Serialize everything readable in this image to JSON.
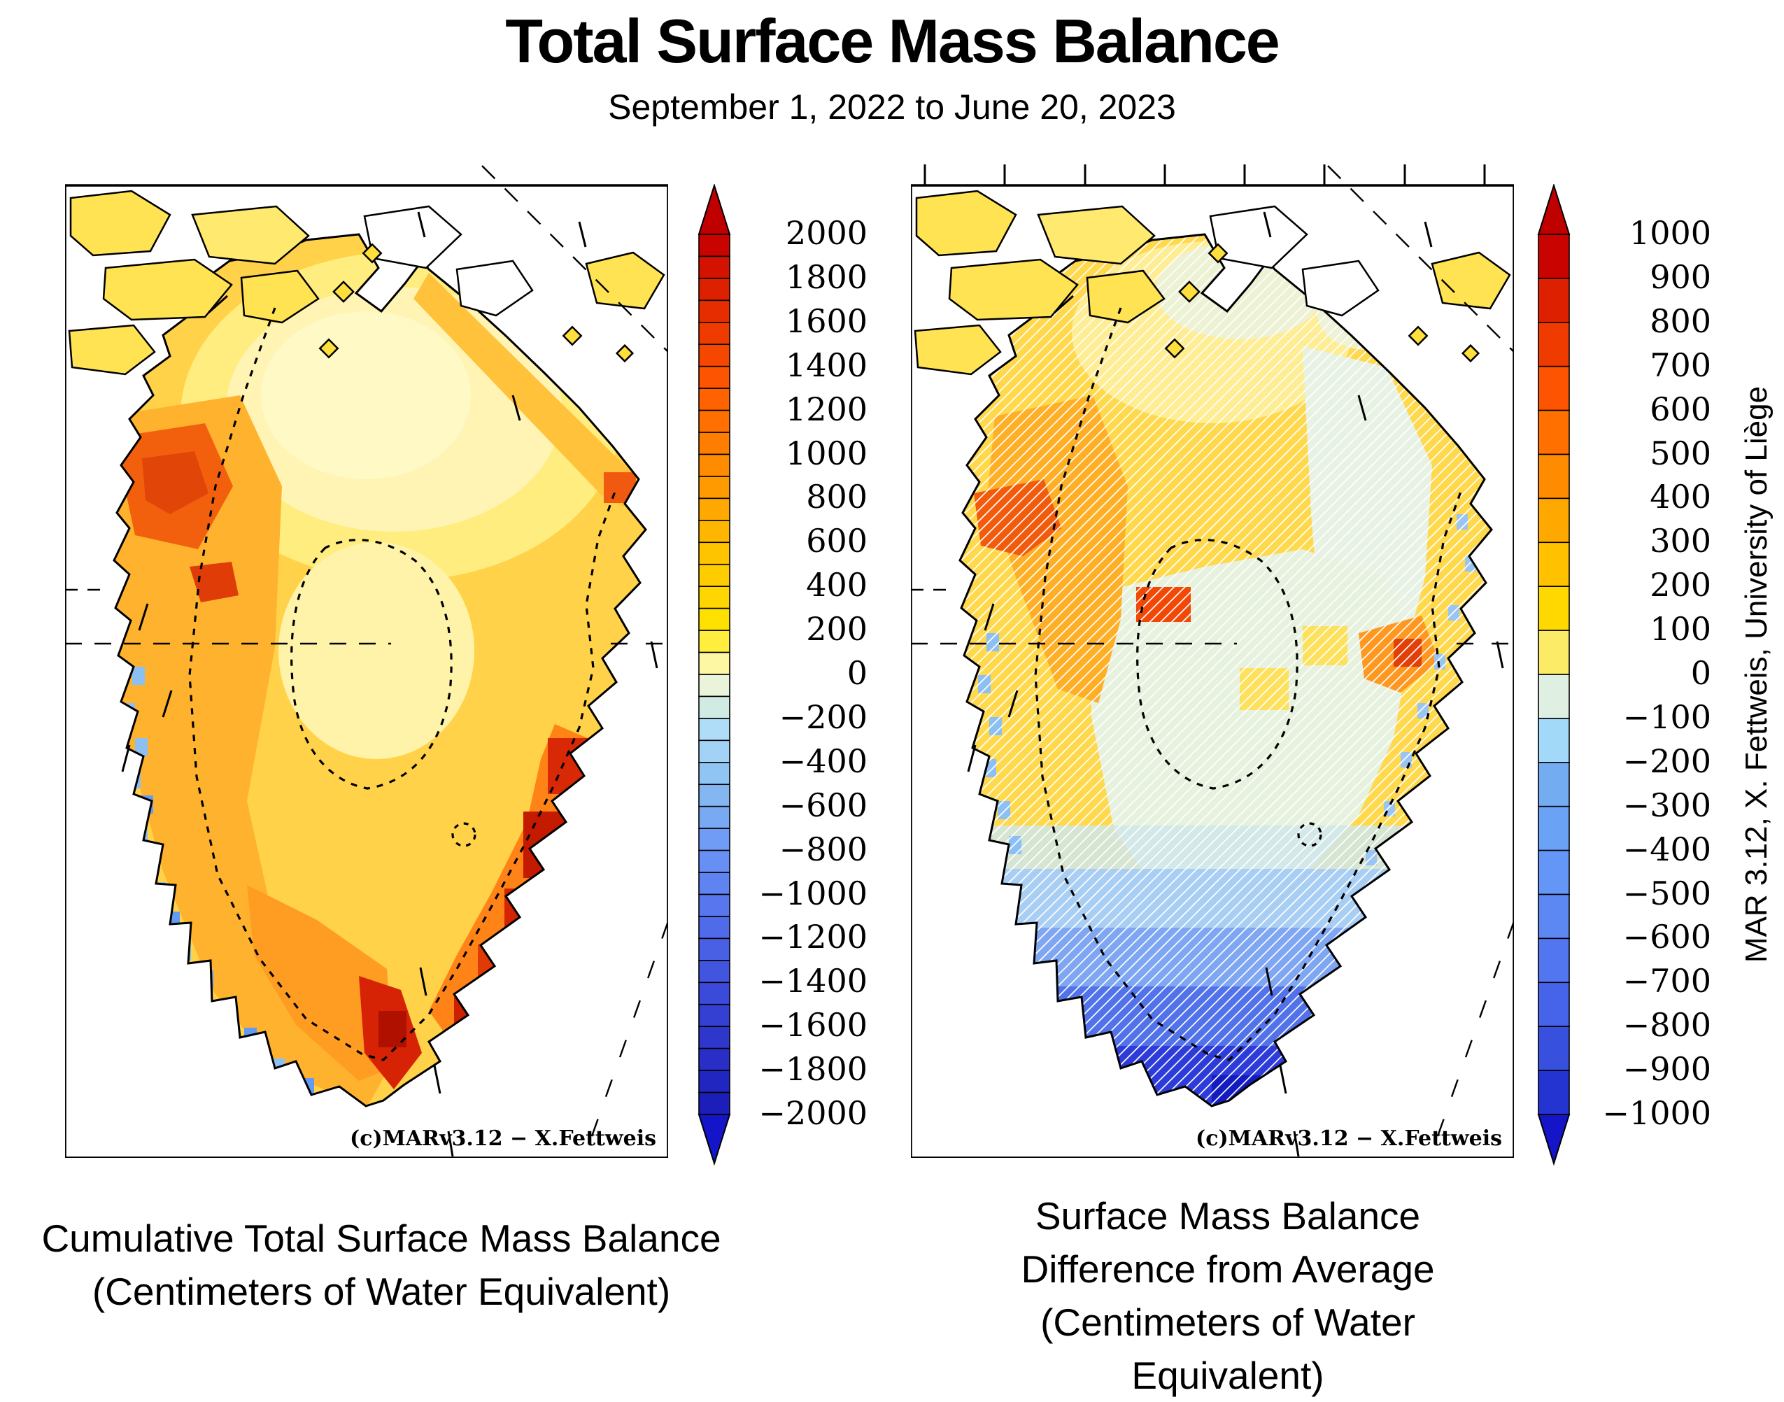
{
  "title": "Total Surface Mass Balance",
  "subtitle": "September 1, 2022 to June 20, 2023",
  "map_credit": "(c)MARv3.12 − X.Fettweis",
  "side_label": "MAR 3.12, X. Fettweis, University of Liège",
  "panels": [
    {
      "id": "cumulative",
      "caption_lines": [
        "Cumulative Total Surface Mass Balance",
        "(Centimeters of Water Equivalent)"
      ],
      "colorbar": {
        "min": -2000,
        "max": 2000,
        "segment_size": 100,
        "label_interval": 200,
        "labels": [
          "2000",
          "1800",
          "1600",
          "1400",
          "1200",
          "1000",
          "800",
          "600",
          "400",
          "200",
          "0",
          "−200",
          "−400",
          "−600",
          "−800",
          "−1000",
          "−1200",
          "−1400",
          "−1600",
          "−1800",
          "−2000"
        ],
        "colors": [
          "#c90400",
          "#d31200",
          "#dd2000",
          "#e62d00",
          "#ef3a00",
          "#f64700",
          "#fc5400",
          "#ff6200",
          "#ff7000",
          "#ff7e00",
          "#ff8c00",
          "#ff9a00",
          "#ffa800",
          "#ffb600",
          "#ffc400",
          "#ffcc00",
          "#ffd600",
          "#ffe100",
          "#ffee3e",
          "#fdf7a3",
          "#eaf4da",
          "#d0eae4",
          "#afdcf6",
          "#a2d2f4",
          "#90c4f2",
          "#84b6f2",
          "#7aa9f4",
          "#719cf5",
          "#688ff4",
          "#6083f2",
          "#5877ee",
          "#506bea",
          "#4960e4",
          "#4255de",
          "#3b4ad8",
          "#3440d2",
          "#2e37cc",
          "#282ec6",
          "#2226c0",
          "#1c1eba"
        ],
        "arrow_up_color": "#c00000",
        "arrow_down_color": "#1414c8"
      }
    },
    {
      "id": "anomaly",
      "caption_lines": [
        "Surface Mass Balance",
        "Difference from Average",
        "(Centimeters of Water Equivalent)"
      ],
      "colorbar": {
        "min": -1000,
        "max": 1000,
        "segment_size": 100,
        "label_interval": 100,
        "labels": [
          "1000",
          "900",
          "800",
          "700",
          "600",
          "500",
          "400",
          "300",
          "200",
          "100",
          "0",
          "−100",
          "−200",
          "−300",
          "−400",
          "−500",
          "−600",
          "−700",
          "−800",
          "−900",
          "−1000"
        ],
        "colors": [
          "#c90400",
          "#dd2000",
          "#ef3a00",
          "#fc5400",
          "#ff7000",
          "#ff8c00",
          "#ffa800",
          "#ffc100",
          "#ffd800",
          "#fbeb66",
          "#dff0e2",
          "#a2d9f8",
          "#74acf2",
          "#6aa2f6",
          "#6396f6",
          "#5c88f4",
          "#5176f0",
          "#4664ea",
          "#3850de",
          "#2434d0"
        ],
        "arrow_up_color": "#c00000",
        "arrow_down_color": "#1414c8"
      }
    }
  ],
  "chart_data": {
    "type": "heatmap",
    "subtype": "choropleth-map-pair",
    "region": "Greenland ice sheet",
    "title": "Total Surface Mass Balance",
    "period": "September 1, 2022 to June 20, 2023",
    "units": "centimeters of water equivalent",
    "model_credit": "MAR 3.12, X. Fettweis, University of Liège",
    "panels": [
      {
        "name": "Cumulative Total Surface Mass Balance",
        "colorbar_range": [
          -2000,
          2000
        ],
        "colorbar_tick_step": 200,
        "colorbar_segment_step": 100,
        "colorbar_ticks": [
          2000,
          1800,
          1600,
          1400,
          1200,
          1000,
          800,
          600,
          400,
          200,
          0,
          -200,
          -400,
          -600,
          -800,
          -1000,
          -1200,
          -1400,
          -1600,
          -1800,
          -2000
        ],
        "legend_position": "right of map, vertical with up/down overflow arrows",
        "observed_values": [
          "Ice-sheet interior plateau: roughly +100 to +400 cm (pale yellow to gold)",
          "Broad west-coast accumulation band: +600 to +1000 cm (orange)",
          "Northwest coast hotspots: +1200 to +1600 cm (red-orange)",
          "Southeast coastal maxima: +1600 to +2000 cm (dark red patches)",
          "Narrow southwest ablation fringe: −200 to −1400 cm (blue pixels along margin)",
          "Ice-free margins and Canadian Arctic islands shown white / pale yellow",
          "Dashed contours mark ice margin and central dome; dotted graticule lines cross map"
        ]
      },
      {
        "name": "Surface Mass Balance Difference from Average",
        "colorbar_range": [
          -1000,
          1000
        ],
        "colorbar_tick_step": 100,
        "colorbar_segment_step": 100,
        "colorbar_ticks": [
          1000,
          900,
          800,
          700,
          600,
          500,
          400,
          300,
          200,
          100,
          0,
          -100,
          -200,
          -300,
          -400,
          -500,
          -600,
          -700,
          -800,
          -900,
          -1000
        ],
        "legend_position": "right of map, vertical with up/down overflow arrows",
        "observed_values": [
          "North and northwest interior: +100 to +300 cm above average (yellow/gold)",
          "West-coast anomaly maxima: +400 to +700 cm (orange-red)",
          "Central and eastern ice sheet: about 0 to −100 cm (pale green, hatched)",
          "South and southwest margin: −300 to −700 cm (light to medium blue)",
          "Far-southern tip: −800 to −1000 cm (dark blue)",
          "White diagonal hatching overlays the anomaly field",
          "Top axis of this panel carries longitude tick marks"
        ]
      }
    ]
  }
}
